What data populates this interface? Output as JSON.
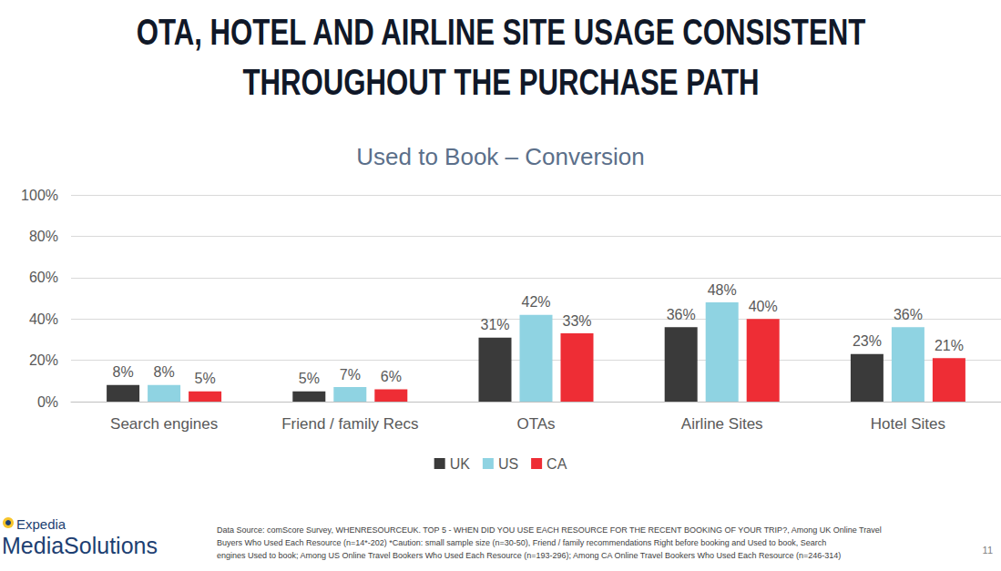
{
  "heading": [
    "OTA, HOTEL AND AIRLINE SITE USAGE CONSISTENT",
    "THROUGHOUT THE PURCHASE PATH"
  ],
  "chart_data": {
    "type": "bar",
    "title": "Used to Book – Conversion",
    "categories": [
      "Search engines",
      "Friend / family Recs",
      "OTAs",
      "Airline Sites",
      "Hotel Sites"
    ],
    "series": [
      {
        "name": "UK",
        "color": "#3a3a3a",
        "values": [
          8,
          5,
          31,
          36,
          23
        ],
        "value_labels": [
          "8%",
          "5%",
          "31%",
          "36%",
          "23%"
        ]
      },
      {
        "name": "US",
        "color": "#8fd3e2",
        "values": [
          8,
          7,
          42,
          48,
          36
        ],
        "value_labels": [
          "8%",
          "7%",
          "42%",
          "48%",
          "36%"
        ]
      },
      {
        "name": "CA",
        "color": "#ee2d35",
        "values": [
          5,
          6,
          33,
          40,
          21
        ],
        "value_labels": [
          "5%",
          "6%",
          "33%",
          "40%",
          "21%"
        ]
      }
    ],
    "ylim": [
      0,
      100
    ],
    "yticks": [
      {
        "value": 0,
        "label": "0%"
      },
      {
        "value": 20,
        "label": "20%"
      },
      {
        "value": 40,
        "label": "40%"
      },
      {
        "value": 60,
        "label": "60%"
      },
      {
        "value": 80,
        "label": "80%"
      },
      {
        "value": 100,
        "label": "100%"
      }
    ],
    "grid": true,
    "legend": "bottom",
    "data_labels": true
  },
  "logo": [
    "Expedia",
    "MediaSolutions"
  ],
  "footer": [
    "Data Source: comScore Survey, WHENRESOURCEUK. TOP 5 - WHEN DID YOU USE EACH RESOURCE FOR THE RECENT BOOKING OF YOUR TRIP?, Among UK Online Travel",
    "Buyers Who Used Each Resource (n=14*-202) *Caution: small sample size (n=30-50), Friend / family recommendations Right before booking and Used to book, Search",
    "engines Used to book; Among US Online Travel Bookers Who Used Each Resource (n=193-296); Among CA Online Travel Bookers Who Used Each Resource (n=246-314)"
  ],
  "page_number": "11"
}
